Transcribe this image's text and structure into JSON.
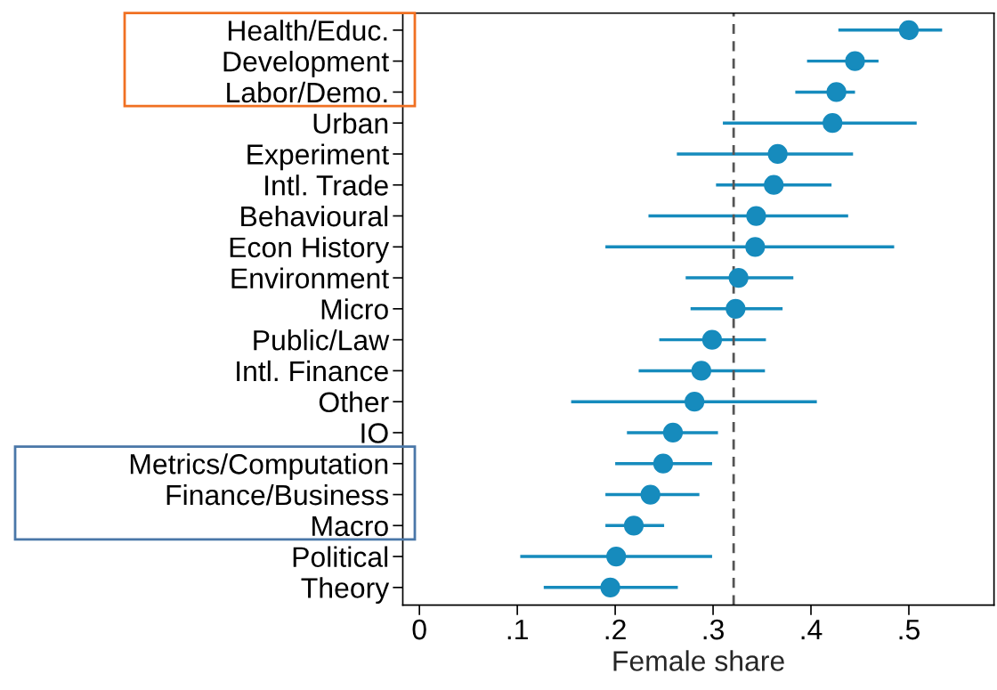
{
  "chart_data": {
    "type": "scatter",
    "orientation": "horizontal",
    "xlabel": "Female share",
    "categories": [
      "Health/Educ.",
      "Development",
      "Labor/Demo.",
      "Urban",
      "Experiment",
      "Intl. Trade",
      "Behavioural",
      "Econ History",
      "Environment",
      "Micro",
      "Public/Law",
      "Intl. Finance",
      "Other",
      "IO",
      "Metrics/Computation",
      "Finance/Business",
      "Macro",
      "Political",
      "Theory"
    ],
    "values": [
      0.5,
      0.445,
      0.426,
      0.422,
      0.366,
      0.362,
      0.344,
      0.343,
      0.326,
      0.323,
      0.299,
      0.288,
      0.281,
      0.259,
      0.249,
      0.236,
      0.219,
      0.201,
      0.195
    ],
    "errors": [
      [
        0.428,
        0.534
      ],
      [
        0.396,
        0.469
      ],
      [
        0.384,
        0.445
      ],
      [
        0.31,
        0.508
      ],
      [
        0.263,
        0.443
      ],
      [
        0.303,
        0.421
      ],
      [
        0.234,
        0.438
      ],
      [
        0.19,
        0.485
      ],
      [
        0.272,
        0.382
      ],
      [
        0.277,
        0.371
      ],
      [
        0.245,
        0.354
      ],
      [
        0.224,
        0.353
      ],
      [
        0.155,
        0.406
      ],
      [
        0.212,
        0.305
      ],
      [
        0.2,
        0.299
      ],
      [
        0.19,
        0.286
      ],
      [
        0.19,
        0.25
      ],
      [
        0.103,
        0.299
      ],
      [
        0.127,
        0.264
      ]
    ],
    "color": "#168bbd",
    "marker": "circle",
    "grid": false,
    "legend": false,
    "xlim": [
      -0.017,
      0.587
    ],
    "xticks": [
      0,
      {
        "value": 0.1,
        "label": ".1"
      },
      {
        "value": 0.2,
        "label": ".2"
      },
      {
        "value": 0.3,
        "label": ".3"
      },
      {
        "value": 0.4,
        "label": ".4"
      },
      {
        "value": 0.5,
        "label": ".5"
      }
    ],
    "ref_lines": [
      {
        "axis": "x",
        "value": 0.321,
        "color": "#555555",
        "line_style": "dashed"
      }
    ]
  }
}
